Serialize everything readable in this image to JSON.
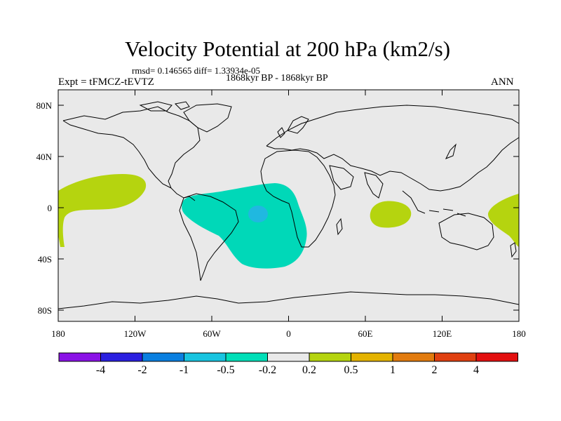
{
  "map": {
    "title": "Velocity Potential at 200 hPa (km2/s)",
    "stats": "rmsd= 0.146565 diff= 1.33934e-05",
    "left_label": "Expt = tFMCZ-tEVTZ",
    "center_label": "1868kyr BP - 1868kyr BP",
    "right_label": "ANN",
    "projection": "cylindrical equidistant",
    "background_color": "#e9e9e9",
    "lat_ticks": [
      "80N",
      "40N",
      "0",
      "40S",
      "80S"
    ],
    "lon_ticks": [
      "180",
      "120W",
      "60W",
      "0",
      "60E",
      "120E",
      "180"
    ],
    "regions": [
      {
        "name": "north-pacific-positive",
        "color": "#b5d40f",
        "level": "0.2 to 0.5"
      },
      {
        "name": "south-america-atlantic-negative",
        "color": "#00d8b8",
        "level": "-0.5 to -0.2"
      },
      {
        "name": "atlantic-negative-core",
        "color": "#20b8e0",
        "level": "-1 to -0.5"
      },
      {
        "name": "indian-ocean-positive",
        "color": "#b5d40f",
        "level": "0.2 to 0.5"
      },
      {
        "name": "west-pacific-positive",
        "color": "#b5d40f",
        "level": "0.2 to 0.5"
      }
    ]
  },
  "colorbar": {
    "labels": [
      "-4",
      "-2",
      "-1",
      "-0.5",
      "-0.2",
      "0.2",
      "0.5",
      "1",
      "2",
      "4"
    ],
    "colors": [
      "#8a12e6",
      "#2a1fe0",
      "#0a7fe0",
      "#18c4e0",
      "#00dfb8",
      "#e9e9e9",
      "#b5d40f",
      "#e4b300",
      "#e27b0e",
      "#e04010",
      "#e30f0f"
    ]
  }
}
